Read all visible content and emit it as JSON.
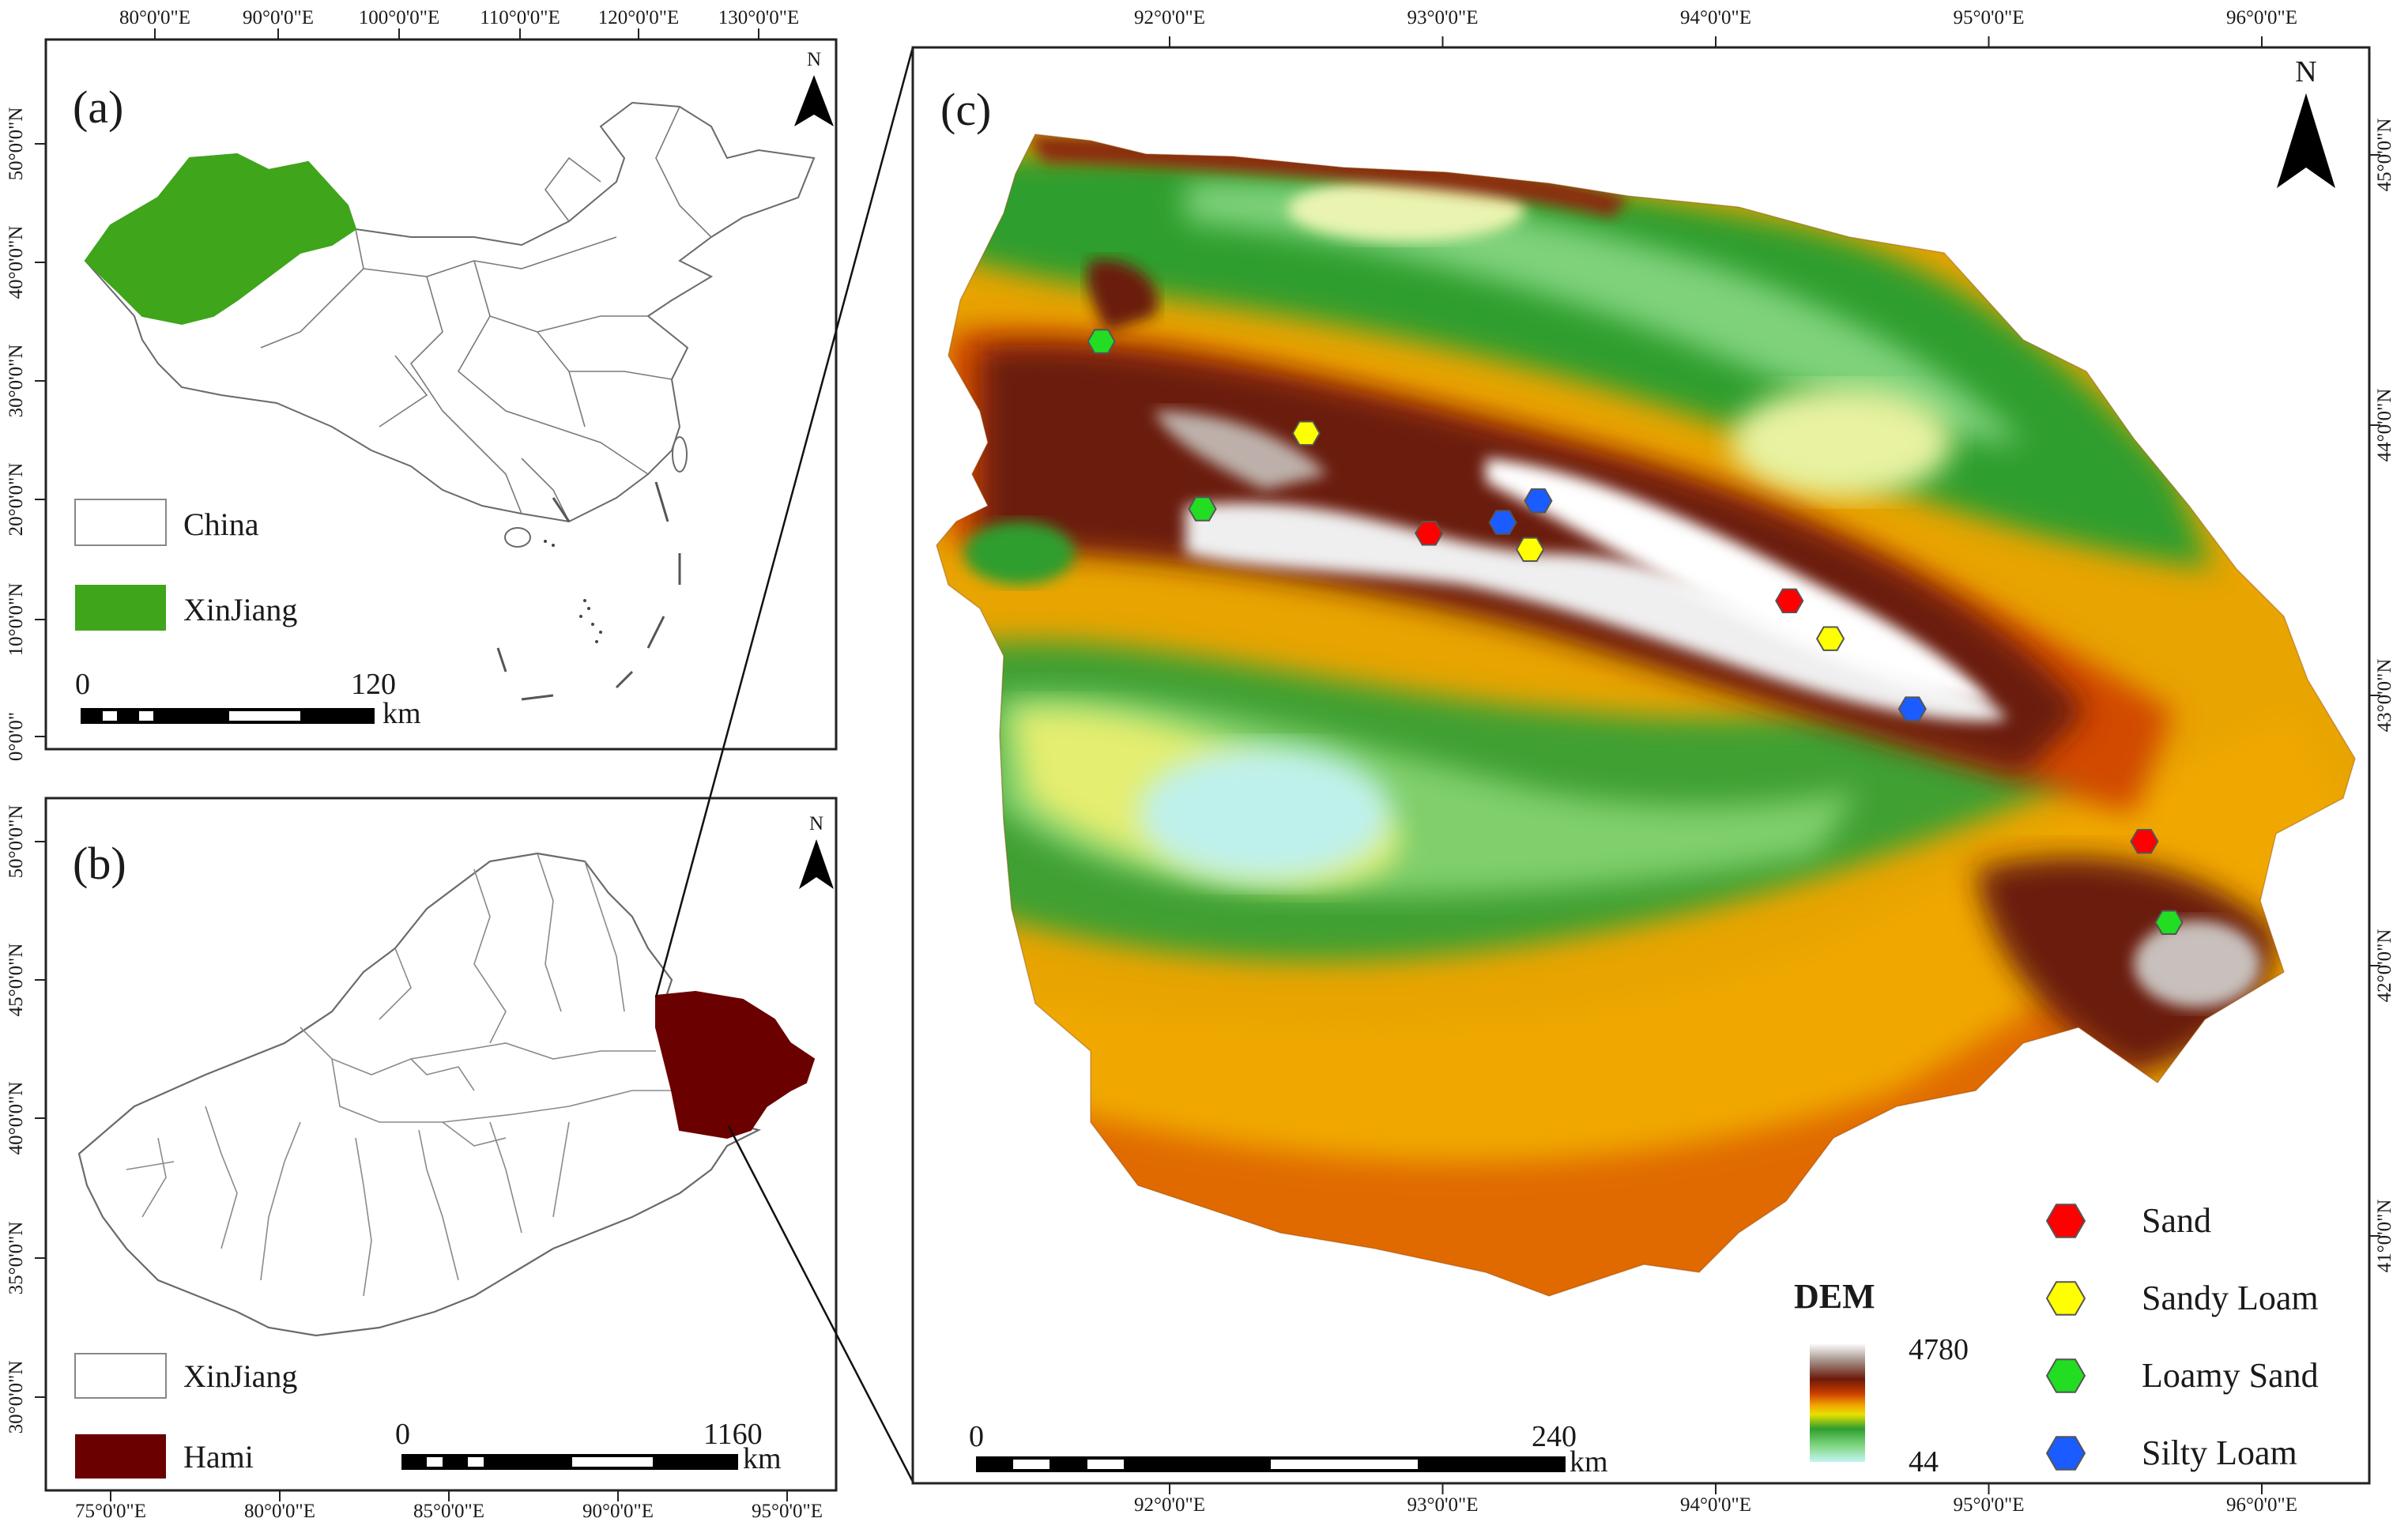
{
  "panels": {
    "a": {
      "label": "(a)",
      "top_lon_ticks": [
        "80°0'0\"E",
        "90°0'0\"E",
        "100°0'0\"E",
        "110°0'0\"E",
        "120°0'0\"E",
        "130°0'0\"E"
      ],
      "left_lat_ticks": [
        "50°0'0\"N",
        "40°0'0\"N",
        "30°0'0\"N",
        "20°0'0\"N",
        "10°0'0\"N",
        "0°0'0\""
      ],
      "legend": [
        {
          "label": "China",
          "color": "#ffffff"
        },
        {
          "label": "XinJiang",
          "color": "#3fa51b"
        }
      ],
      "scale": {
        "start": "0",
        "end": "120",
        "unit": "km"
      },
      "north": "N"
    },
    "b": {
      "label": "(b)",
      "bottom_lon_ticks": [
        "75°0'0\"E",
        "80°0'0\"E",
        "85°0'0\"E",
        "90°0'0\"E",
        "95°0'0\"E"
      ],
      "left_lat_ticks": [
        "50°0'0\"N",
        "45°0'0\"N",
        "40°0'0\"N",
        "35°0'0\"N",
        "30°0'0\"N"
      ],
      "legend": [
        {
          "label": "XinJiang",
          "color": "#ffffff"
        },
        {
          "label": "Hami",
          "color": "#6b0000"
        }
      ],
      "scale": {
        "start": "0",
        "end": "1160",
        "unit": "km"
      },
      "north": "N"
    },
    "c": {
      "label": "(c)",
      "top_lon_ticks": [
        "92°0'0\"E",
        "93°0'0\"E",
        "94°0'0\"E",
        "95°0'0\"E",
        "96°0'0\"E"
      ],
      "bottom_lon_ticks": [
        "92°0'0\"E",
        "93°0'0\"E",
        "94°0'0\"E",
        "95°0'0\"E",
        "96°0'0\"E"
      ],
      "right_lat_ticks": [
        "45°0'0\"N",
        "44°0'0\"N",
        "43°0'0\"N",
        "42°0'0\"N",
        "41°0'0\"N"
      ],
      "dem": {
        "title": "DEM",
        "max": "4780",
        "min": "44",
        "colors": [
          "#ffffff",
          "#b0a09a",
          "#6b1a0a",
          "#c83c00",
          "#f2a200",
          "#e8e000",
          "#2f9e2f",
          "#7ed67e",
          "#b8f0f0"
        ]
      },
      "scale": {
        "start": "0",
        "end": "240",
        "unit": "km"
      },
      "north": "N",
      "legend": [
        {
          "label": "Sand",
          "color": "#ff0000"
        },
        {
          "label": "Sandy Loam",
          "color": "#ffff00"
        },
        {
          "label": "Loamy Sand",
          "color": "#22dd22"
        },
        {
          "label": "Silty Loam",
          "color": "#1a5cff"
        }
      ],
      "sample_points": [
        {
          "type": "Loamy Sand",
          "lon": 91.75,
          "lat": 44.31
        },
        {
          "type": "Sandy Loam",
          "lon": 92.5,
          "lat": 43.97
        },
        {
          "type": "Loamy Sand",
          "lon": 92.12,
          "lat": 43.69
        },
        {
          "type": "Sand",
          "lon": 92.95,
          "lat": 43.6
        },
        {
          "type": "Silty Loam",
          "lon": 93.22,
          "lat": 43.64
        },
        {
          "type": "Silty Loam",
          "lon": 93.35,
          "lat": 43.72
        },
        {
          "type": "Sandy Loam",
          "lon": 93.32,
          "lat": 43.54
        },
        {
          "type": "Sand",
          "lon": 94.27,
          "lat": 43.35
        },
        {
          "type": "Sandy Loam",
          "lon": 94.42,
          "lat": 43.21
        },
        {
          "type": "Silty Loam",
          "lon": 94.72,
          "lat": 42.95
        },
        {
          "type": "Sand",
          "lon": 95.57,
          "lat": 42.46
        },
        {
          "type": "Loamy Sand",
          "lon": 95.66,
          "lat": 42.16
        }
      ]
    }
  }
}
